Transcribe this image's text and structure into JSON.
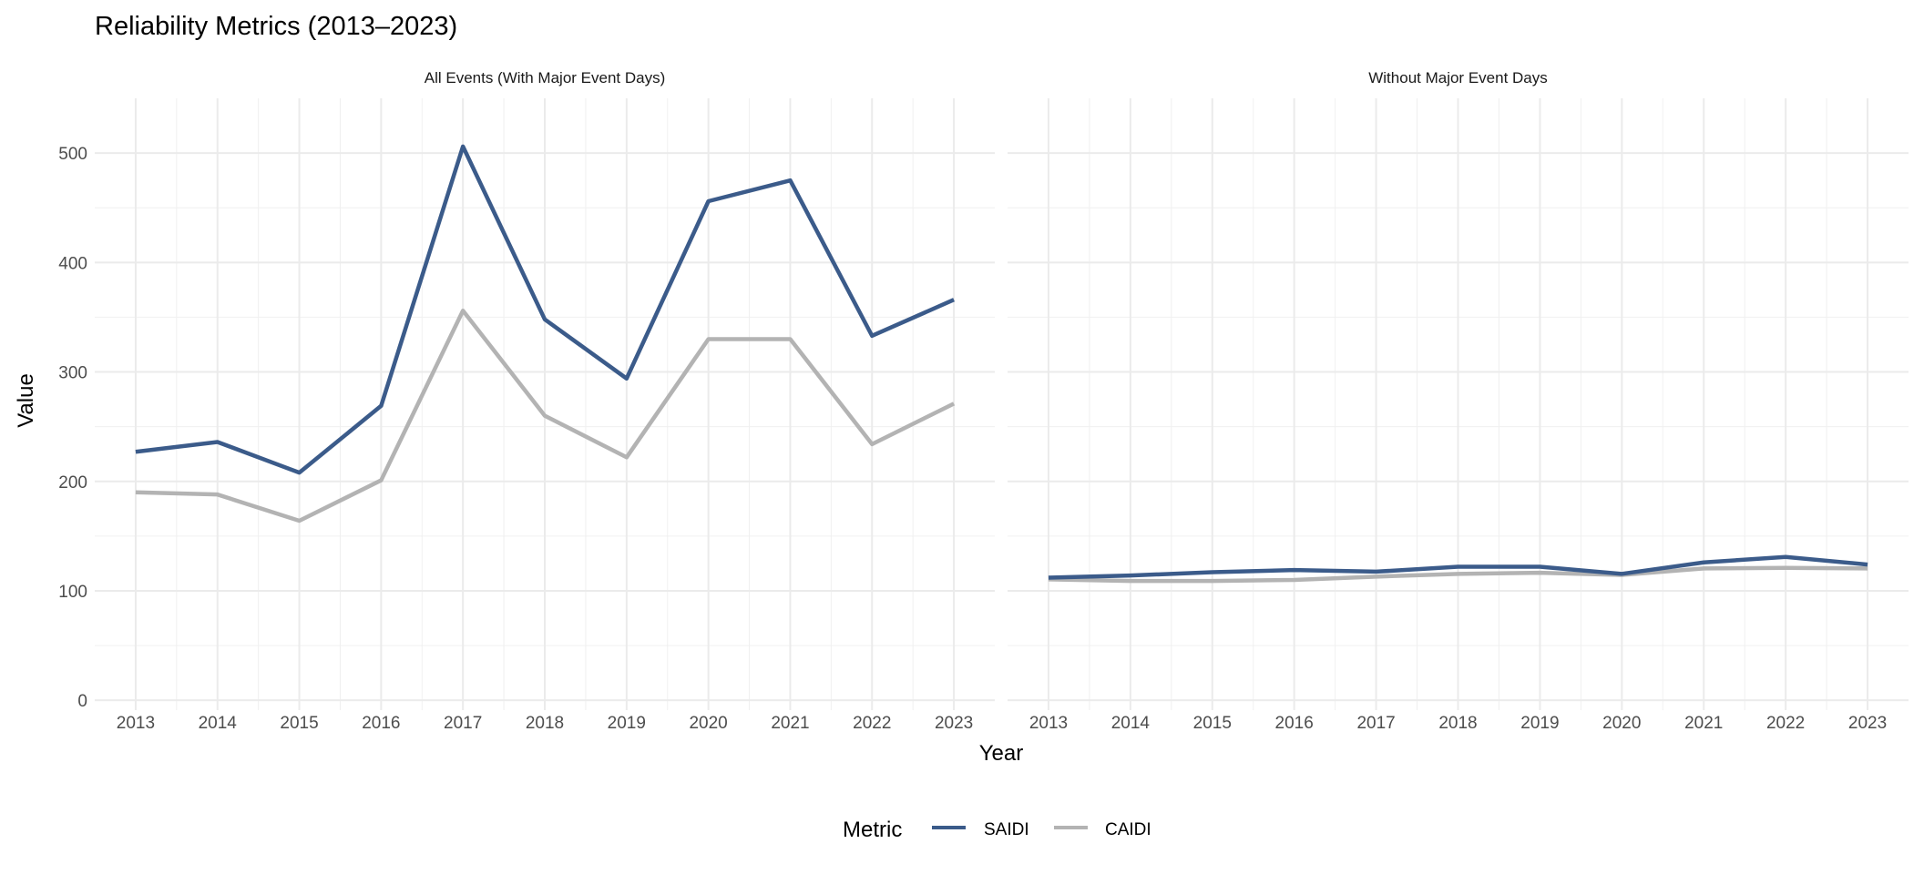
{
  "chart_data": {
    "type": "line",
    "title": "Reliability Metrics (2013–2023)",
    "xlabel": "Year",
    "ylabel": "Value",
    "ylim": [
      -9,
      550
    ],
    "yticks": [
      0,
      100,
      200,
      300,
      400,
      500
    ],
    "x": [
      2013,
      2014,
      2015,
      2016,
      2017,
      2018,
      2019,
      2020,
      2021,
      2022,
      2023
    ],
    "grid": true,
    "legend": {
      "title": "Metric",
      "position": "bottom",
      "entries": [
        "SAIDI",
        "CAIDI"
      ]
    },
    "colors": {
      "SAIDI": "#3b5b8a",
      "CAIDI": "#b3b3b3"
    },
    "panels": [
      {
        "label": "All Events (With Major Event Days)",
        "series": [
          {
            "name": "SAIDI",
            "values": [
              227,
              236,
              208,
              269,
              506,
              348,
              294,
              456,
              475,
              333,
              366
            ]
          },
          {
            "name": "CAIDI",
            "values": [
              190,
              188,
              164,
              201,
              356,
              260,
              222,
              330,
              330,
              234,
              271
            ]
          }
        ]
      },
      {
        "label": "Without Major Event Days",
        "series": [
          {
            "name": "SAIDI",
            "values": [
              112,
              114,
              117,
              119,
              117.5,
              122,
              122,
              115.5,
              126,
              131,
              124
            ]
          },
          {
            "name": "CAIDI",
            "values": [
              110.5,
              109,
              109,
              110,
              113,
              115.5,
              116.5,
              114.5,
              120.5,
              121,
              120.5
            ]
          }
        ]
      }
    ]
  }
}
